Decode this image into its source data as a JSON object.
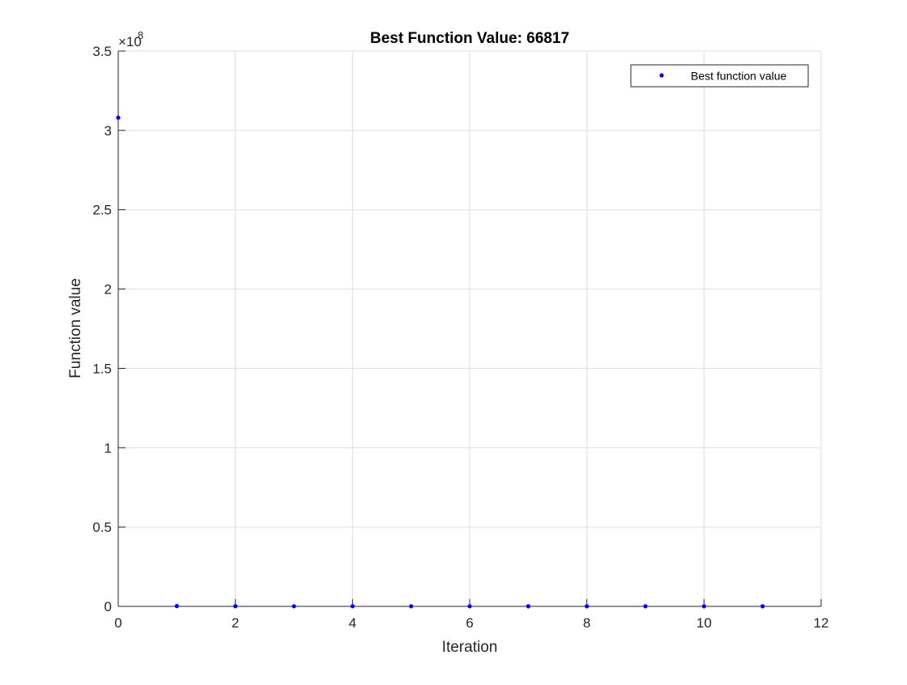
{
  "chart_data": {
    "type": "scatter",
    "title": "Best Function Value: 66817",
    "xlabel": "Iteration",
    "ylabel": "Function value",
    "xlim": [
      0,
      12
    ],
    "ylim": [
      0,
      350000000
    ],
    "x_ticks": [
      0,
      2,
      4,
      6,
      8,
      10,
      12
    ],
    "x_tick_labels": [
      "0",
      "2",
      "4",
      "6",
      "8",
      "10",
      "12"
    ],
    "y_ticks": [
      0,
      50000000,
      100000000,
      150000000,
      200000000,
      250000000,
      300000000,
      350000000
    ],
    "y_tick_labels": [
      "0",
      "0.5",
      "1",
      "1.5",
      "2",
      "2.5",
      "3",
      "3.5"
    ],
    "y_exponent_base": "×10",
    "y_exponent_power": "8",
    "grid": true,
    "legend_position": "top-right",
    "series": [
      {
        "name": "Best function value",
        "color": "#0000ff",
        "x": [
          0,
          1,
          2,
          3,
          4,
          5,
          6,
          7,
          8,
          9,
          10,
          11
        ],
        "y": [
          308000000,
          200000,
          120000,
          100000,
          90000,
          80000,
          75000,
          72000,
          70000,
          68000,
          67000,
          66817
        ]
      }
    ]
  }
}
